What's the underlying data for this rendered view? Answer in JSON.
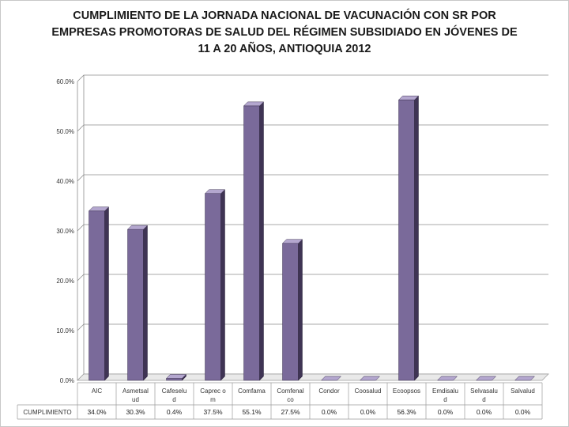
{
  "chart_data": {
    "type": "bar",
    "title": "CUMPLIMIENTO DE LA JORNADA NACIONAL DE VACUNACIÓN CON SR POR EMPRESAS PROMOTORAS DE SALUD DEL RÉGIMEN SUBSIDIADO EN JÓVENES DE 11 A 20 AÑOS, ANTIOQUIA 2012",
    "title_lines": [
      "CUMPLIMIENTO DE LA JORNADA NACIONAL DE VACUNACIÓN CON SR POR",
      "EMPRESAS PROMOTORAS  DE SALUD DEL RÉGIMEN SUBSIDIADO EN JÓVENES DE",
      "11 A 20 AÑOS, ANTIOQUIA 2012"
    ],
    "categories": [
      "AIC",
      "Asmetsalud",
      "Cafesalud",
      "Caprecom",
      "Comfama",
      "Comfenalco",
      "Condor",
      "Coosalud",
      "Ecoopsos",
      "Emdisalud",
      "Selvasalud",
      "Salvalud"
    ],
    "category_lines": [
      [
        "AIC"
      ],
      [
        "Asmetsal",
        "ud"
      ],
      [
        "Cafeselu",
        "d"
      ],
      [
        "Caprec o",
        "m"
      ],
      [
        "Comfama"
      ],
      [
        "Comfenal",
        "co"
      ],
      [
        "Condor"
      ],
      [
        "Coosalud"
      ],
      [
        "Ecoopsos"
      ],
      [
        "Emdisalu",
        "d"
      ],
      [
        "Selvasalu",
        "d"
      ],
      [
        "Salvalud"
      ]
    ],
    "series": [
      {
        "name": "CUMPLIMIENTO",
        "values": [
          34.0,
          30.3,
          0.4,
          37.5,
          55.1,
          27.5,
          0.0,
          0.0,
          56.3,
          0.0,
          0.0,
          0.0
        ]
      }
    ],
    "value_labels": [
      "34.0%",
      "30.3%",
      "0.4%",
      "37.5%",
      "55.1%",
      "27.5%",
      "0.0%",
      "0.0%",
      "56.3%",
      "0.0%",
      "0.0%",
      "0.0%"
    ],
    "table_row_label": "CUMPLIMIENTO",
    "yticks": [
      "0.0%",
      "10.0%",
      "20.0%",
      "30.0%",
      "40.0%",
      "50.0%",
      "60.0%"
    ],
    "ylim": [
      0,
      60
    ],
    "grid": true,
    "bar_color": "#7a6a9a",
    "bar_top_color": "#b4a7cf",
    "bar_side_color": "#3f3454"
  }
}
